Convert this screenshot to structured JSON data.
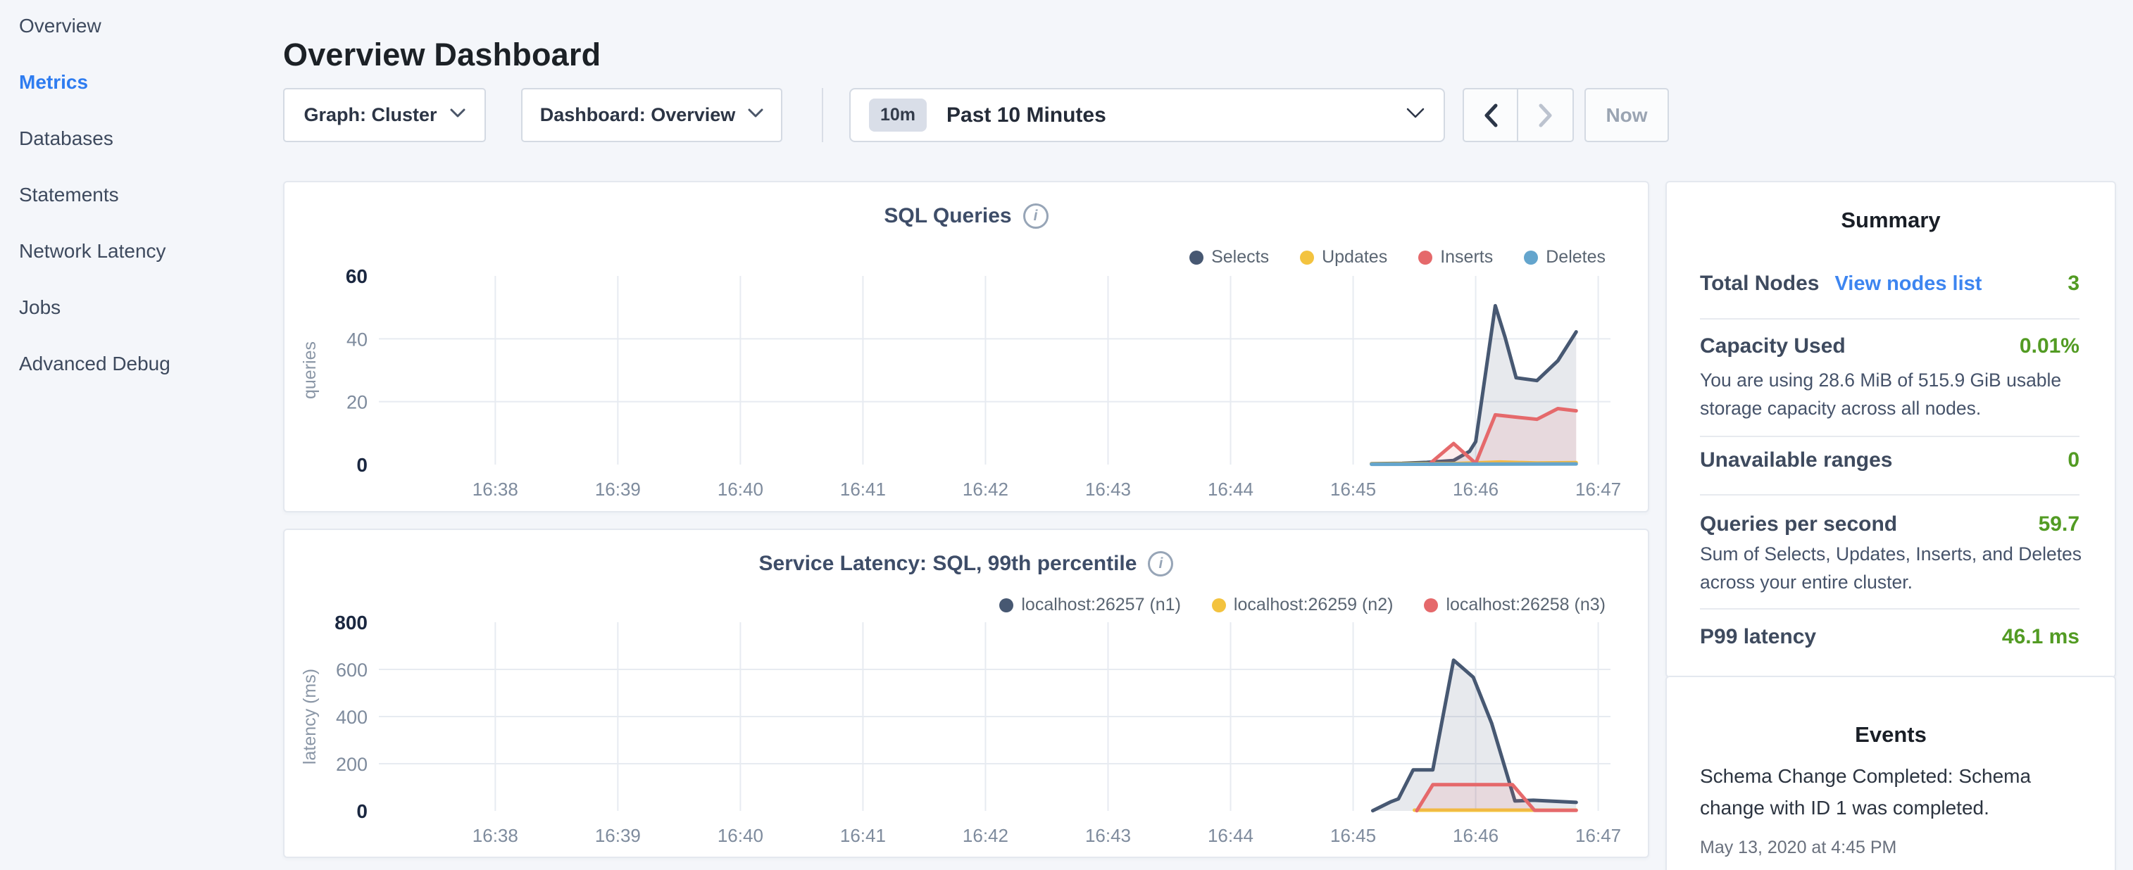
{
  "colors": {
    "accent_blue": "#2e7cf0",
    "link_blue": "#3d85f0",
    "green": "#529b23",
    "navy_series": "#475872",
    "yellow_series": "#f3c33f",
    "red_series": "#e5696b",
    "blue_series": "#64a5cd",
    "grid": "#e7ebf1",
    "tick": "#7e8b9d",
    "tick_bold": "#1a2740"
  },
  "sidebar": {
    "items": [
      {
        "label": "Overview",
        "active": false
      },
      {
        "label": "Metrics",
        "active": true
      },
      {
        "label": "Databases",
        "active": false
      },
      {
        "label": "Statements",
        "active": false
      },
      {
        "label": "Network Latency",
        "active": false
      },
      {
        "label": "Jobs",
        "active": false
      },
      {
        "label": "Advanced Debug",
        "active": false
      }
    ]
  },
  "header": {
    "title": "Overview Dashboard"
  },
  "controls": {
    "graph_label": "Graph: Cluster",
    "dashboard_label": "Dashboard: Overview",
    "time_badge": "10m",
    "time_label": "Past 10 Minutes",
    "now_label": "Now"
  },
  "summary": {
    "title": "Summary",
    "rows": [
      {
        "label": "Total Nodes",
        "link": "View nodes list",
        "value": "3"
      },
      {
        "label": "Capacity Used",
        "value": "0.01%",
        "description": "You are using 28.6 MiB of 515.9 GiB usable storage capacity across all nodes."
      },
      {
        "label": "Unavailable ranges",
        "value": "0"
      },
      {
        "label": "Queries per second",
        "value": "59.7",
        "description": "Sum of Selects, Updates, Inserts, and Deletes across your entire cluster."
      },
      {
        "label": "P99 latency",
        "value": "46.1 ms"
      }
    ]
  },
  "events": {
    "title": "Events",
    "items": [
      {
        "text": "Schema Change Completed: Schema change with ID 1 was completed.",
        "date": "May 13, 2020 at 4:45 PM"
      }
    ]
  },
  "chart_data": [
    {
      "type": "area",
      "title": "SQL Queries",
      "ylabel": "queries",
      "ylim": [
        0,
        60
      ],
      "xlim": [
        0.05,
        10.1
      ],
      "grid_y": [
        20,
        40
      ],
      "yticks": [
        {
          "v": 0,
          "label": "0",
          "bold": true
        },
        {
          "v": 20,
          "label": "20",
          "bold": false
        },
        {
          "v": 40,
          "label": "40",
          "bold": false
        },
        {
          "v": 60,
          "label": "60",
          "bold": true
        }
      ],
      "xticks": [
        {
          "t": 1,
          "label": "16:38"
        },
        {
          "t": 2,
          "label": "16:39"
        },
        {
          "t": 3,
          "label": "16:40"
        },
        {
          "t": 4,
          "label": "16:41"
        },
        {
          "t": 5,
          "label": "16:42"
        },
        {
          "t": 6,
          "label": "16:43"
        },
        {
          "t": 7,
          "label": "16:44"
        },
        {
          "t": 8,
          "label": "16:45"
        },
        {
          "t": 9,
          "label": "16:46"
        },
        {
          "t": 10,
          "label": "16:47"
        }
      ],
      "legend_position": "top-right",
      "series": [
        {
          "name": "Selects",
          "color": "#475872",
          "fill": "rgba(71,88,114,0.13)",
          "points": [
            [
              8.15,
              0.3
            ],
            [
              8.4,
              0.4
            ],
            [
              8.6,
              0.7
            ],
            [
              8.82,
              1.3
            ],
            [
              8.95,
              4.2
            ],
            [
              9.0,
              7.3
            ],
            [
              9.16,
              50.5
            ],
            [
              9.24,
              40.5
            ],
            [
              9.33,
              27.6
            ],
            [
              9.5,
              26.7
            ],
            [
              9.67,
              33
            ],
            [
              9.82,
              42.2
            ]
          ]
        },
        {
          "name": "Updates",
          "color": "#f3c33f",
          "fill": "none",
          "points": [
            [
              8.15,
              0.2
            ],
            [
              8.8,
              0.3
            ],
            [
              9.2,
              0.8
            ],
            [
              9.5,
              0.5
            ],
            [
              9.82,
              0.6
            ]
          ]
        },
        {
          "name": "Inserts",
          "color": "#e5696b",
          "fill": "rgba(229,105,107,0.12)",
          "points": [
            [
              8.62,
              0.1
            ],
            [
              8.82,
              6.7
            ],
            [
              9.0,
              0.4
            ],
            [
              9.16,
              15.8
            ],
            [
              9.33,
              15.1
            ],
            [
              9.5,
              14.4
            ],
            [
              9.67,
              17.8
            ],
            [
              9.82,
              17.1
            ]
          ]
        },
        {
          "name": "Deletes",
          "color": "#64a5cd",
          "fill": "none",
          "points": [
            [
              8.15,
              0.1
            ],
            [
              9.82,
              0.2
            ]
          ]
        }
      ]
    },
    {
      "type": "area",
      "title": "Service Latency: SQL, 99th percentile",
      "ylabel": "latency (ms)",
      "ylim": [
        0,
        800
      ],
      "xlim": [
        0.05,
        10.1
      ],
      "grid_y": [
        200,
        400,
        600
      ],
      "yticks": [
        {
          "v": 0,
          "label": "0",
          "bold": true
        },
        {
          "v": 200,
          "label": "200",
          "bold": false
        },
        {
          "v": 400,
          "label": "400",
          "bold": false
        },
        {
          "v": 600,
          "label": "600",
          "bold": false
        },
        {
          "v": 800,
          "label": "800",
          "bold": true
        }
      ],
      "xticks": [
        {
          "t": 1,
          "label": "16:38"
        },
        {
          "t": 2,
          "label": "16:39"
        },
        {
          "t": 3,
          "label": "16:40"
        },
        {
          "t": 4,
          "label": "16:41"
        },
        {
          "t": 5,
          "label": "16:42"
        },
        {
          "t": 6,
          "label": "16:43"
        },
        {
          "t": 7,
          "label": "16:44"
        },
        {
          "t": 8,
          "label": "16:45"
        },
        {
          "t": 9,
          "label": "16:46"
        },
        {
          "t": 10,
          "label": "16:47"
        }
      ],
      "legend_position": "top-right",
      "series": [
        {
          "name": "localhost:26257 (n1)",
          "color": "#475872",
          "fill": "rgba(71,88,114,0.13)",
          "points": [
            [
              8.16,
              1
            ],
            [
              8.31,
              39
            ],
            [
              8.37,
              51
            ],
            [
              8.49,
              174
            ],
            [
              8.65,
              174
            ],
            [
              8.82,
              639
            ],
            [
              8.9,
              603
            ],
            [
              8.98,
              567
            ],
            [
              9.13,
              372
            ],
            [
              9.32,
              42
            ],
            [
              9.47,
              45
            ],
            [
              9.82,
              36
            ]
          ]
        },
        {
          "name": "localhost:26259 (n2)",
          "color": "#f3c33f",
          "fill": "none",
          "points": [
            [
              8.5,
              3
            ],
            [
              9.82,
              3
            ]
          ]
        },
        {
          "name": "localhost:26258 (n3)",
          "color": "#e5696b",
          "fill": "rgba(229,105,107,0.12)",
          "points": [
            [
              8.52,
              1
            ],
            [
              8.65,
              111
            ],
            [
              9.3,
              111
            ],
            [
              9.48,
              2
            ],
            [
              9.82,
              2
            ]
          ]
        }
      ]
    }
  ]
}
